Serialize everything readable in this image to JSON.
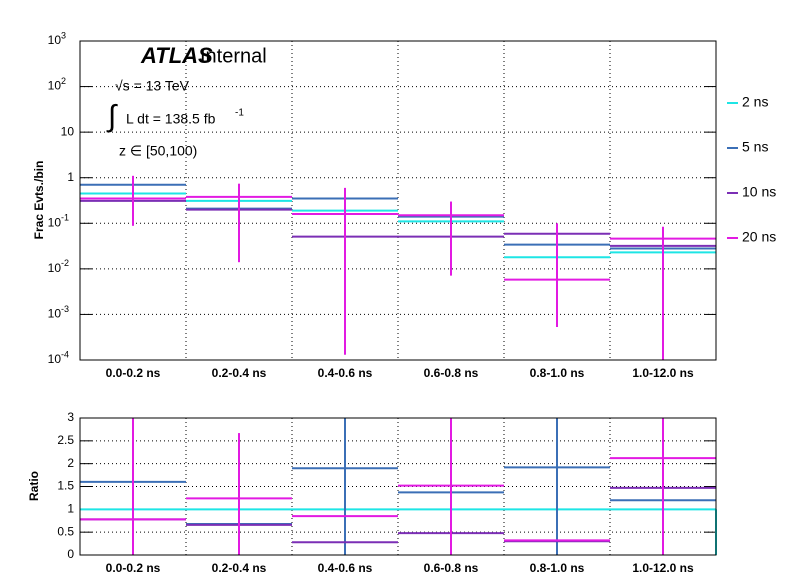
{
  "chart_data": [
    {
      "type": "step",
      "ylabel": "Frac Evts./bin",
      "annotations": {
        "atlas": "ATLAS",
        "internal": "Internal",
        "sqrt_s": "√s = 13 TeV",
        "integral": "∫",
        "lumi": "L dt = 138.5 fb",
        "lumi_sup": "-1",
        "z_range": "z ∈ [50,100)"
      },
      "categories": [
        "0.0-0.2 ns",
        "0.2-0.4 ns",
        "0.4-0.6 ns",
        "0.6-0.8 ns",
        "0.8-1.0 ns",
        "1.0-12.0 ns"
      ],
      "series": [
        {
          "name": "2 ns",
          "color": "#1ee5e5",
          "values": [
            0.45,
            0.31,
            0.19,
            0.11,
            0.018,
            0.023
          ]
        },
        {
          "name": "5 ns",
          "color": "#3b6fb6",
          "values": [
            0.7,
            0.21,
            0.35,
            0.14,
            0.034,
            0.028
          ]
        },
        {
          "name": "10 ns",
          "color": "#7b2fb5",
          "values": [
            0.31,
            0.2,
            0.051,
            0.051,
            0.059,
            0.032
          ]
        },
        {
          "name": "20 ns",
          "color": "#e21ae2",
          "values": [
            0.35,
            0.38,
            0.16,
            0.15,
            0.0058,
            0.046
          ],
          "err_low": [
            0.088,
            0.014,
            0.00013,
            0.0071,
            0.00053,
            0.0001
          ],
          "err_high": [
            1.1,
            0.74,
            0.6,
            0.3,
            0.1,
            0.084
          ]
        }
      ],
      "ylim": [
        0.0001,
        1000
      ],
      "log_y": true,
      "grid": true,
      "legend": "right",
      "yticks": [
        {
          "value": 0.0001,
          "label": "10",
          "sup": "-4"
        },
        {
          "value": 0.001,
          "label": "10",
          "sup": "-3"
        },
        {
          "value": 0.01,
          "label": "10",
          "sup": "-2"
        },
        {
          "value": 0.1,
          "label": "10",
          "sup": "-1"
        },
        1,
        10,
        {
          "value": 100,
          "label": "10",
          "sup": "2"
        },
        {
          "value": 1000,
          "label": "10",
          "sup": "3"
        }
      ]
    },
    {
      "type": "step",
      "ylabel": "Ratio",
      "categories": [
        "0.0-0.2 ns",
        "0.2-0.4 ns",
        "0.4-0.6 ns",
        "0.6-0.8 ns",
        "0.8-1.0 ns",
        "1.0-12.0 ns"
      ],
      "series": [
        {
          "color": "#1ee5e5",
          "values": [
            1,
            1,
            1,
            1,
            1,
            1
          ]
        },
        {
          "color": "#3b6fb6",
          "values": [
            1.6,
            0.68,
            1.9,
            1.37,
            1.92,
            1.2
          ],
          "err_low": [
            null,
            null,
            0,
            null,
            0,
            null
          ],
          "err_high": [
            null,
            null,
            3,
            null,
            3,
            null
          ]
        },
        {
          "color": "#7b2fb5",
          "values": [
            0.78,
            0.66,
            0.28,
            0.48,
            0.3,
            1.47
          ]
        },
        {
          "color": "#e21ae2",
          "values": [
            0.78,
            1.24,
            0.85,
            1.52,
            0.32,
            2.12
          ],
          "err_low": [
            0,
            0,
            null,
            0,
            null,
            0
          ],
          "err_high": [
            3,
            2.67,
            null,
            3,
            null,
            3
          ]
        }
      ],
      "ylim": [
        0,
        3
      ],
      "grid": true,
      "yticks": [
        0,
        0.5,
        1,
        1.5,
        2,
        2.5,
        3
      ]
    }
  ]
}
